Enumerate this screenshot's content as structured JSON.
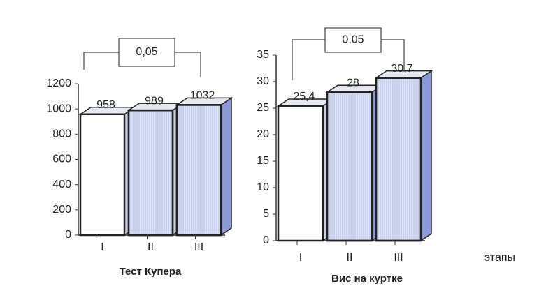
{
  "chart_data": [
    {
      "type": "bar",
      "title": "Тест Купера",
      "categories": [
        "I",
        "II",
        "III"
      ],
      "values": [
        958,
        989,
        1032
      ],
      "colors": [
        "#ffffff",
        "#dde4f6",
        "#dde4f6"
      ],
      "side_colors": [
        "#c9cfe0",
        "#c9cfe0",
        "#8a9ad6"
      ],
      "ylim": [
        0,
        1200
      ],
      "yticks": [
        0,
        200,
        400,
        600,
        800,
        1000,
        1200
      ],
      "annotation": "0,05"
    },
    {
      "type": "bar",
      "title": "Вис на куртке",
      "x_label": "этапы",
      "categories": [
        "I",
        "II",
        "III"
      ],
      "values": [
        25.4,
        28,
        30.7
      ],
      "value_labels": [
        "25,4",
        "28",
        "30,7"
      ],
      "colors": [
        "#ffffff",
        "#dde4f6",
        "#dde4f6"
      ],
      "side_colors": [
        "#c9cfe0",
        "#8a9ad6",
        "#8a9ad6"
      ],
      "ylim": [
        0,
        35
      ],
      "yticks": [
        0,
        5,
        10,
        15,
        20,
        25,
        30,
        35
      ],
      "annotation": "0,05"
    }
  ]
}
